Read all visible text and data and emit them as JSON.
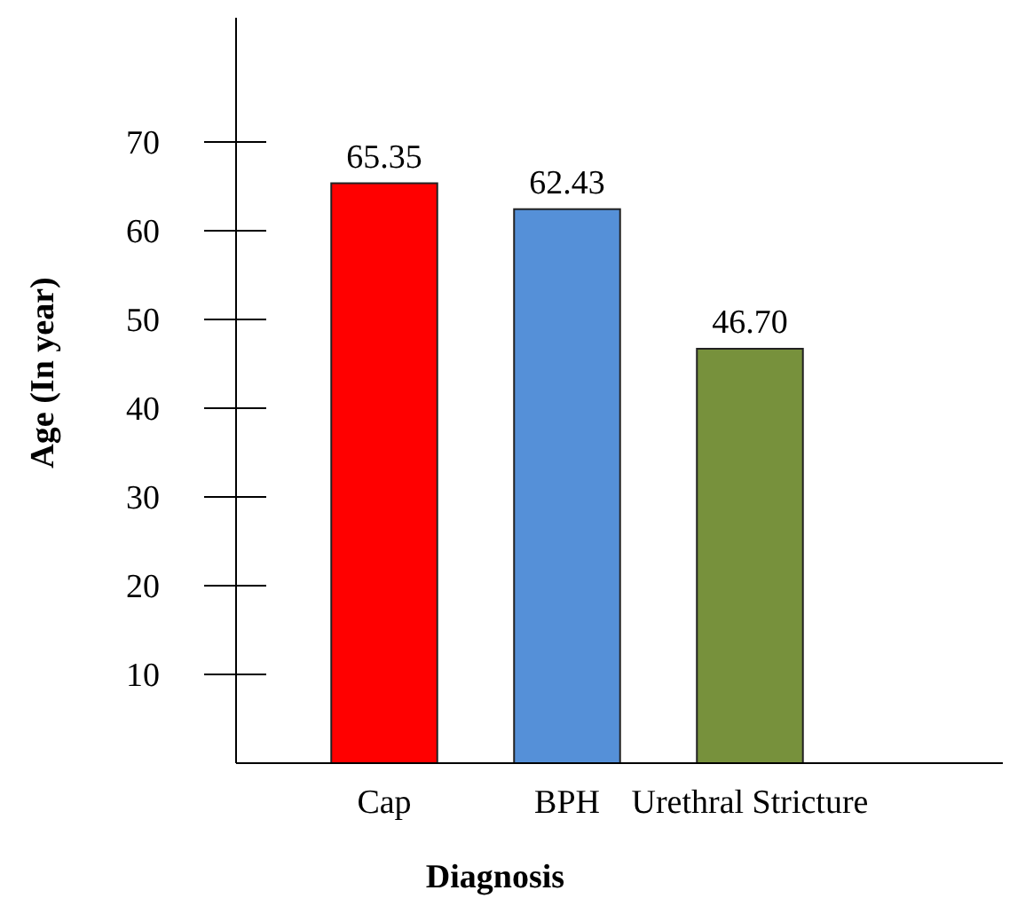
{
  "chart_data": {
    "type": "bar",
    "xlabel": "Diagnosis",
    "ylabel": "Age (In year)",
    "categories": [
      "Cap",
      "BPH",
      "Urethral Stricture"
    ],
    "values": [
      65.35,
      62.43,
      46.7
    ],
    "colors": [
      "#ff0000",
      "#5590d8",
      "#77913c"
    ],
    "value_labels": [
      "65.35",
      "62.43",
      "46.70"
    ],
    "ylim": [
      0,
      84
    ],
    "yticks": [
      10,
      20,
      30,
      40,
      50,
      60,
      70
    ],
    "grid": false
  }
}
